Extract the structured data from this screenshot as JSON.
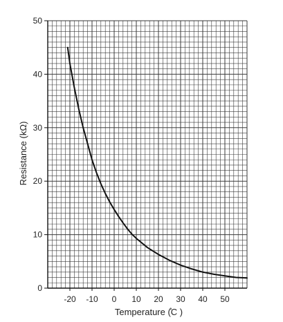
{
  "chart_data": {
    "type": "line",
    "xlabel": "Temperature (̊C )",
    "ylabel": "Resistance (kΩ)",
    "xlim": [
      -30,
      60
    ],
    "ylim": [
      0,
      50
    ],
    "x_ticks": [
      -20,
      -10,
      0,
      10,
      20,
      30,
      40,
      50
    ],
    "y_ticks": [
      0,
      10,
      20,
      30,
      40,
      50
    ],
    "grid": true,
    "series": [
      {
        "x": [
          -21,
          -20,
          -18,
          -16,
          -14,
          -12,
          -10,
          -8,
          -6,
          -4,
          -2,
          0,
          2,
          4,
          6,
          8,
          10,
          15,
          20,
          25,
          30,
          35,
          40,
          45,
          50,
          55,
          60
        ],
        "y": [
          45,
          42,
          37.5,
          33.5,
          30,
          27,
          24,
          21.6,
          19.5,
          17.7,
          16.1,
          14.7,
          13.4,
          12.2,
          11.1,
          10.1,
          9.3,
          7.6,
          6.3,
          5.2,
          4.3,
          3.6,
          3.0,
          2.6,
          2.3,
          2.0,
          1.9
        ]
      }
    ],
    "colors": {
      "grid": "#3a3a3a",
      "curve": "#111111",
      "text": "#222222"
    }
  }
}
